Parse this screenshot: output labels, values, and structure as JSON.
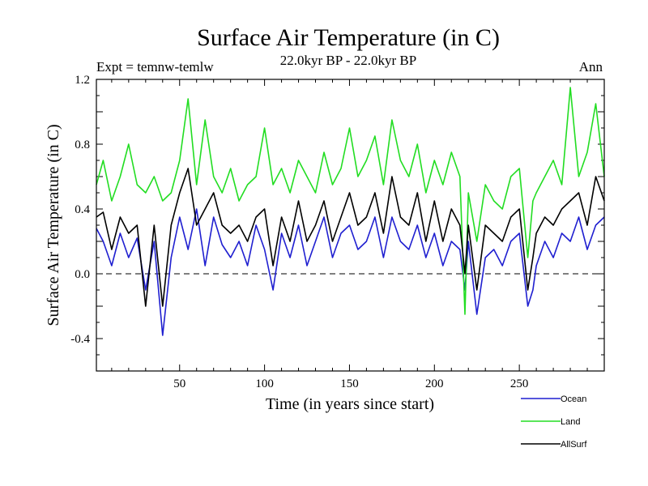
{
  "chart_data": {
    "type": "line",
    "title": "Surface Air Temperature (in C)",
    "subtitle_left": "Expt = temnw-temlw",
    "subtitle_center": "22.0kyr BP - 22.0kyr BP",
    "subtitle_right": "Ann",
    "xlabel": "Time (in years since start)",
    "ylabel": "Surface Air Temperature (in C)",
    "xlim": [
      1,
      300
    ],
    "ylim": [
      -0.6,
      1.2
    ],
    "xticks": [
      50,
      100,
      150,
      200,
      250
    ],
    "yticks": [
      -0.4,
      0.0,
      0.4,
      0.8,
      1.2
    ],
    "ytick_labels": [
      "-0.4",
      "0.0",
      "0.4",
      "0.8",
      "1.2"
    ],
    "reference_line": 0.0,
    "legend_position": "bottom-right outside",
    "series": [
      {
        "name": "Ocean",
        "color": "#1f1fd0",
        "x": [
          1,
          5,
          10,
          15,
          20,
          25,
          30,
          35,
          40,
          45,
          50,
          55,
          60,
          65,
          70,
          75,
          80,
          85,
          90,
          95,
          100,
          105,
          110,
          115,
          120,
          125,
          130,
          135,
          140,
          145,
          150,
          155,
          160,
          165,
          170,
          175,
          180,
          185,
          190,
          195,
          200,
          205,
          210,
          215,
          218,
          220,
          225,
          230,
          235,
          240,
          245,
          250,
          255,
          258,
          260,
          265,
          270,
          275,
          280,
          285,
          290,
          295,
          300
        ],
        "values": [
          0.28,
          0.2,
          0.05,
          0.25,
          0.1,
          0.22,
          -0.1,
          0.2,
          -0.38,
          0.1,
          0.35,
          0.15,
          0.4,
          0.05,
          0.35,
          0.18,
          0.1,
          0.2,
          0.05,
          0.3,
          0.15,
          -0.1,
          0.25,
          0.1,
          0.3,
          0.05,
          0.2,
          0.35,
          0.1,
          0.25,
          0.3,
          0.15,
          0.2,
          0.35,
          0.1,
          0.35,
          0.2,
          0.15,
          0.3,
          0.1,
          0.25,
          0.05,
          0.2,
          0.15,
          -0.1,
          0.2,
          -0.25,
          0.1,
          0.15,
          0.05,
          0.2,
          0.25,
          -0.2,
          -0.1,
          0.05,
          0.2,
          0.1,
          0.25,
          0.2,
          0.35,
          0.15,
          0.3,
          0.35
        ]
      },
      {
        "name": "Land",
        "color": "#22dd22",
        "x": [
          1,
          5,
          10,
          15,
          20,
          25,
          30,
          35,
          40,
          45,
          50,
          55,
          60,
          65,
          70,
          75,
          80,
          85,
          90,
          95,
          100,
          105,
          110,
          115,
          120,
          125,
          130,
          135,
          140,
          145,
          150,
          155,
          160,
          165,
          170,
          175,
          180,
          185,
          190,
          195,
          200,
          205,
          210,
          215,
          218,
          220,
          225,
          230,
          235,
          240,
          245,
          250,
          255,
          258,
          260,
          265,
          270,
          275,
          280,
          285,
          290,
          295,
          300
        ],
        "values": [
          0.55,
          0.7,
          0.45,
          0.6,
          0.8,
          0.55,
          0.5,
          0.6,
          0.45,
          0.5,
          0.7,
          1.08,
          0.55,
          0.95,
          0.6,
          0.5,
          0.65,
          0.45,
          0.55,
          0.6,
          0.9,
          0.55,
          0.65,
          0.5,
          0.7,
          0.6,
          0.5,
          0.75,
          0.55,
          0.65,
          0.9,
          0.6,
          0.7,
          0.85,
          0.55,
          0.95,
          0.7,
          0.6,
          0.8,
          0.5,
          0.7,
          0.55,
          0.75,
          0.6,
          -0.25,
          0.5,
          0.2,
          0.55,
          0.45,
          0.4,
          0.6,
          0.65,
          0.1,
          0.45,
          0.5,
          0.6,
          0.7,
          0.55,
          1.15,
          0.6,
          0.75,
          1.05,
          0.6
        ]
      },
      {
        "name": "AllSurf",
        "color": "#000000",
        "x": [
          1,
          5,
          10,
          15,
          20,
          25,
          30,
          35,
          40,
          45,
          50,
          55,
          60,
          65,
          70,
          75,
          80,
          85,
          90,
          95,
          100,
          105,
          110,
          115,
          120,
          125,
          130,
          135,
          140,
          145,
          150,
          155,
          160,
          165,
          170,
          175,
          180,
          185,
          190,
          195,
          200,
          205,
          210,
          215,
          218,
          220,
          225,
          230,
          235,
          240,
          245,
          250,
          255,
          258,
          260,
          265,
          270,
          275,
          280,
          285,
          290,
          295,
          300
        ],
        "values": [
          0.35,
          0.38,
          0.15,
          0.35,
          0.25,
          0.3,
          -0.2,
          0.3,
          -0.2,
          0.3,
          0.5,
          0.65,
          0.3,
          0.4,
          0.5,
          0.3,
          0.25,
          0.3,
          0.2,
          0.35,
          0.4,
          0.05,
          0.35,
          0.2,
          0.45,
          0.2,
          0.3,
          0.45,
          0.2,
          0.35,
          0.5,
          0.3,
          0.35,
          0.5,
          0.25,
          0.6,
          0.35,
          0.3,
          0.5,
          0.2,
          0.45,
          0.2,
          0.4,
          0.3,
          0.0,
          0.3,
          -0.1,
          0.3,
          0.25,
          0.2,
          0.35,
          0.4,
          -0.1,
          0.1,
          0.25,
          0.35,
          0.3,
          0.4,
          0.45,
          0.5,
          0.3,
          0.6,
          0.45
        ]
      }
    ]
  }
}
